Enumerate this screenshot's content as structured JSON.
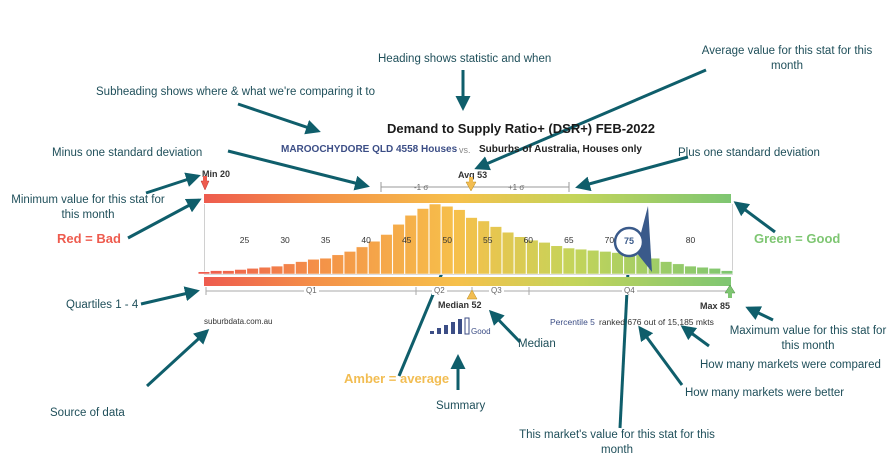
{
  "header": {
    "title": "Demand to Supply Ratio+ (DSR+) FEB-2022",
    "subject": "MAROOCHYDORE QLD 4558 Houses",
    "vs": "vs.",
    "comparison": "Suburbs of Australia, Houses only"
  },
  "markers": {
    "min": "Min 20",
    "avg": "Avg 53",
    "max": "Max 85",
    "median": "Median 52",
    "minus_sigma": "-1 σ",
    "plus_sigma": "+1 σ",
    "value_badge": "75"
  },
  "quartiles": [
    "Q1",
    "Q2",
    "Q3",
    "Q4"
  ],
  "footer": {
    "source": "suburbdata.com.au",
    "percentile": "Percentile 5",
    "ranked": "ranked 676 out of 15,185 mkts",
    "good_partial": "Good"
  },
  "annotations": {
    "heading": "Heading shows statistic and when",
    "average": "Average value for this stat for this month",
    "subheading": "Subheading shows where & what we're comparing it to",
    "minus_sd": "Minus one standard deviation",
    "plus_sd": "Plus one standard deviation",
    "minimum": "Minimum value for this stat for this month",
    "red_bad": "Red = Bad",
    "green_good": "Green = Good",
    "quartiles": "Quartiles 1 - 4",
    "maximum": "Maximum value for this stat for this month",
    "median": "Median",
    "markets_compared": "How many markets were compared",
    "amber": "Amber = average",
    "markets_better": "How many markets were better",
    "source": "Source of data",
    "summary": "Summary",
    "this_value": "This market's value for this stat for this month"
  },
  "colors": {
    "arrow": "#0f5e6b",
    "annotation_text": "#1f4f5a",
    "bad": "#ee5b4e",
    "average": "#f2bd52",
    "good": "#7ec672",
    "link_blue": "#3c4e86"
  },
  "chart_data": {
    "type": "bar",
    "tick_labels": [
      "25",
      "30",
      "35",
      "40",
      "45",
      "50",
      "55",
      "60",
      "65",
      "70",
      "75",
      "80"
    ],
    "x": [
      20,
      21.5,
      23,
      24.5,
      26,
      27.5,
      29,
      30.5,
      32,
      33.5,
      35,
      36.5,
      38,
      39.5,
      41,
      42.5,
      44,
      45.5,
      47,
      48.5,
      50,
      51.5,
      53,
      54.5,
      56,
      57.5,
      59,
      60.5,
      62,
      63.5,
      65,
      66.5,
      68,
      69.5,
      71,
      72.5,
      74,
      75.5,
      77,
      78.5,
      80,
      81.5,
      83,
      84.5
    ],
    "values": [
      2,
      3,
      3,
      4,
      5,
      6,
      7,
      9,
      11,
      13,
      14,
      17,
      20,
      24,
      29,
      35,
      44,
      52,
      58,
      62,
      60,
      57,
      50,
      47,
      42,
      37,
      33,
      30,
      28,
      25,
      23,
      22,
      21,
      20,
      19,
      18,
      17,
      14,
      11,
      9,
      7,
      6,
      5,
      3
    ],
    "xlim": [
      20,
      85
    ],
    "highlight_value": 75
  }
}
